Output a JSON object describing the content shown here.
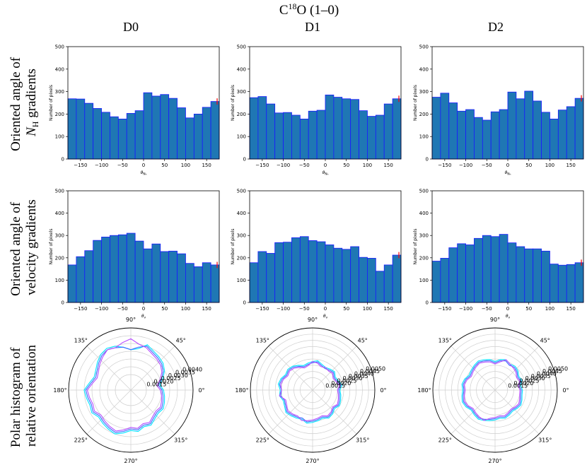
{
  "figure": {
    "title_main": "C",
    "title_sup": "18",
    "title_rest": "O (1–0)",
    "columns": [
      "D0",
      "D1",
      "D2"
    ],
    "row_labels": [
      [
        "Oriented angle of",
        "N",
        "H",
        " gradients"
      ],
      [
        "Oriented angle of",
        "velocity gradients"
      ],
      [
        "Polar histogram of",
        "relative orientation"
      ]
    ]
  },
  "colors": {
    "bar_fill": "#1f77b4",
    "bar_edge": "#1a1aff",
    "error": "#ff0000",
    "polar_series": [
      "#00e5ff",
      "#3d6bff",
      "#b84dff"
    ]
  },
  "chart_data": [
    {
      "type": "bar",
      "row": 0,
      "col": 0,
      "xlabel_sym": "θ",
      "xlabel_sub": "Nₕ",
      "ylabel": "Number of pixels",
      "ylim": [
        0,
        500
      ],
      "xlim": [
        -180,
        180
      ],
      "xticks": [
        -150,
        -100,
        -50,
        0,
        50,
        100,
        150
      ],
      "yticks": [
        0,
        100,
        200,
        300,
        400,
        500
      ],
      "bin_edges_start": -180,
      "bin_width": 20,
      "values": [
        268,
        267,
        248,
        225,
        208,
        188,
        178,
        203,
        215,
        295,
        280,
        287,
        270,
        228,
        183,
        200,
        230,
        256
      ],
      "error": {
        "x": 175,
        "value": 256,
        "size": 14
      }
    },
    {
      "type": "bar",
      "row": 0,
      "col": 1,
      "xlabel_sym": "θ",
      "xlabel_sub": "Nₕ",
      "ylabel": "Number of pixels",
      "ylim": [
        0,
        500
      ],
      "xlim": [
        -180,
        180
      ],
      "xticks": [
        -150,
        -100,
        -50,
        0,
        50,
        100,
        150
      ],
      "yticks": [
        0,
        100,
        200,
        300,
        400,
        500
      ],
      "bin_edges_start": -180,
      "bin_width": 20,
      "values": [
        273,
        278,
        245,
        205,
        207,
        195,
        178,
        213,
        217,
        285,
        275,
        268,
        265,
        215,
        190,
        195,
        245,
        268
      ],
      "error": {
        "x": 175,
        "value": 268,
        "size": 14
      }
    },
    {
      "type": "bar",
      "row": 0,
      "col": 2,
      "xlabel_sym": "θ",
      "xlabel_sub": "Nₕ",
      "ylabel": "Number of pixels",
      "ylim": [
        0,
        500
      ],
      "xlim": [
        -180,
        180
      ],
      "xticks": [
        -150,
        -100,
        -50,
        0,
        50,
        100,
        150
      ],
      "yticks": [
        0,
        100,
        200,
        300,
        400,
        500
      ],
      "bin_edges_start": -180,
      "bin_width": 20,
      "values": [
        275,
        293,
        250,
        213,
        220,
        185,
        173,
        210,
        220,
        298,
        268,
        302,
        258,
        208,
        178,
        218,
        233,
        270
      ],
      "error": {
        "x": 175,
        "value": 270,
        "size": 14
      }
    },
    {
      "type": "bar",
      "row": 1,
      "col": 0,
      "xlabel_sym": "θ",
      "xlabel_sub": "v",
      "ylabel": "Number of pixels",
      "ylim": [
        0,
        500
      ],
      "xlim": [
        -180,
        180
      ],
      "xticks": [
        -150,
        -100,
        -50,
        0,
        50,
        100,
        150
      ],
      "yticks": [
        0,
        100,
        200,
        300,
        400,
        500
      ],
      "bin_edges_start": -180,
      "bin_width": 20,
      "values": [
        168,
        205,
        232,
        278,
        293,
        300,
        303,
        310,
        275,
        240,
        262,
        228,
        230,
        218,
        175,
        160,
        178,
        168
      ],
      "error": {
        "x": 175,
        "value": 168,
        "size": 14
      }
    },
    {
      "type": "bar",
      "row": 1,
      "col": 1,
      "xlabel_sym": "θ",
      "xlabel_sub": "v",
      "ylabel": "Number of pixels",
      "ylim": [
        0,
        500
      ],
      "xlim": [
        -180,
        180
      ],
      "xticks": [
        -150,
        -100,
        -50,
        0,
        50,
        100,
        150
      ],
      "yticks": [
        0,
        100,
        200,
        300,
        400,
        500
      ],
      "bin_edges_start": -180,
      "bin_width": 20,
      "values": [
        178,
        228,
        220,
        268,
        270,
        290,
        295,
        277,
        272,
        258,
        243,
        238,
        250,
        202,
        198,
        140,
        168,
        212
      ],
      "error": {
        "x": 175,
        "value": 212,
        "size": 14
      }
    },
    {
      "type": "bar",
      "row": 1,
      "col": 2,
      "xlabel_sym": "θ",
      "xlabel_sub": "v",
      "ylabel": "Number of pixels",
      "ylim": [
        0,
        500
      ],
      "xlim": [
        -180,
        180
      ],
      "xticks": [
        -150,
        -100,
        -50,
        0,
        50,
        100,
        150
      ],
      "yticks": [
        0,
        100,
        200,
        300,
        400,
        500
      ],
      "bin_edges_start": -180,
      "bin_width": 20,
      "values": [
        185,
        198,
        245,
        263,
        258,
        287,
        300,
        295,
        305,
        267,
        250,
        240,
        240,
        230,
        172,
        167,
        170,
        178
      ],
      "error": {
        "x": 175,
        "value": 178,
        "size": 14
      }
    },
    {
      "type": "polar",
      "row": 2,
      "col": 0,
      "rmin": 0.0005,
      "rmax": 0.0045,
      "rticks": [
        "0.0015",
        "0.0020",
        "0.0025",
        "0.0030",
        "0.0035",
        "0.0040"
      ],
      "rtick_values": [
        0.0015,
        0.002,
        0.0025,
        0.003,
        0.0035,
        0.004
      ],
      "angle_labels": [
        "0°",
        "45°",
        "90°",
        "135°",
        "180°",
        "225°",
        "270°",
        "315°"
      ],
      "series": [
        {
          "values": [
            0.0026,
            0.0024,
            0.0027,
            0.003,
            0.0032,
            0.0033,
            0.0034,
            0.0036,
            0.0032,
            0.0031,
            0.0033,
            0.0035,
            0.0036,
            0.0035,
            0.0033,
            0.0031,
            0.003,
            0.0032,
            0.0035,
            0.0034,
            0.0033,
            0.0034,
            0.0032,
            0.0033,
            0.0034,
            0.0035,
            0.0033,
            0.0031,
            0.0032,
            0.003,
            0.0031,
            0.0029,
            0.0028,
            0.0029,
            0.0028,
            0.0027
          ]
        },
        {
          "values": [
            0.0025,
            0.0023,
            0.0026,
            0.0029,
            0.0031,
            0.0032,
            0.0033,
            0.0035,
            0.0033,
            0.0031,
            0.0033,
            0.0034,
            0.0035,
            0.0034,
            0.0032,
            0.003,
            0.0029,
            0.0031,
            0.0034,
            0.0033,
            0.0032,
            0.0033,
            0.0031,
            0.0032,
            0.0033,
            0.0034,
            0.0032,
            0.003,
            0.0031,
            0.0029,
            0.003,
            0.0028,
            0.0027,
            0.0028,
            0.0027,
            0.0026
          ]
        },
        {
          "values": [
            0.0024,
            0.0022,
            0.0025,
            0.0028,
            0.003,
            0.0031,
            0.0032,
            0.0034,
            0.0035,
            0.0038,
            0.0036,
            0.0034,
            0.0035,
            0.0033,
            0.0031,
            0.0029,
            0.0028,
            0.003,
            0.0033,
            0.0032,
            0.0031,
            0.0032,
            0.003,
            0.0031,
            0.0032,
            0.0033,
            0.0031,
            0.0029,
            0.003,
            0.0028,
            0.0029,
            0.0027,
            0.0026,
            0.0027,
            0.0026,
            0.0025
          ]
        }
      ]
    },
    {
      "type": "polar",
      "row": 2,
      "col": 1,
      "rmin": 0.0005,
      "rmax": 0.0055,
      "rticks": [
        "0.0015",
        "0.0020",
        "0.0025",
        "0.0030",
        "0.0035",
        "0.0040",
        "0.0045",
        "0.0050"
      ],
      "rtick_values": [
        0.0015,
        0.002,
        0.0025,
        0.003,
        0.0035,
        0.004,
        0.0045,
        0.005
      ],
      "angle_labels": [
        "0°",
        "45°",
        "90°",
        "135°",
        "180°",
        "225°",
        "270°",
        "315°"
      ],
      "series": [
        {
          "values": [
            0.0027,
            0.0029,
            0.0027,
            0.0026,
            0.0028,
            0.0027,
            0.0026,
            0.0027,
            0.0029,
            0.0028,
            0.0027,
            0.0026,
            0.0028,
            0.003,
            0.0031,
            0.003,
            0.0032,
            0.0033,
            0.0031,
            0.0032,
            0.003,
            0.0031,
            0.0033,
            0.0032,
            0.0031,
            0.003,
            0.0032,
            0.0031,
            0.003,
            0.0029,
            0.0031,
            0.003,
            0.0028,
            0.003,
            0.0029,
            0.0028
          ]
        },
        {
          "values": [
            0.0026,
            0.0028,
            0.0026,
            0.0025,
            0.0027,
            0.0026,
            0.0025,
            0.0026,
            0.0028,
            0.0027,
            0.0026,
            0.0025,
            0.0027,
            0.0029,
            0.003,
            0.0029,
            0.0031,
            0.0032,
            0.003,
            0.0031,
            0.0029,
            0.003,
            0.0032,
            0.0031,
            0.003,
            0.0029,
            0.0031,
            0.003,
            0.0029,
            0.0028,
            0.003,
            0.0029,
            0.0027,
            0.0029,
            0.0028,
            0.0027
          ]
        },
        {
          "values": [
            0.0025,
            0.0027,
            0.0025,
            0.0024,
            0.0026,
            0.0025,
            0.0026,
            0.0025,
            0.0027,
            0.0028,
            0.0025,
            0.0024,
            0.0026,
            0.0028,
            0.0029,
            0.0028,
            0.003,
            0.0031,
            0.003,
            0.0032,
            0.0028,
            0.0029,
            0.0031,
            0.003,
            0.0029,
            0.0031,
            0.003,
            0.0029,
            0.0028,
            0.0027,
            0.0029,
            0.0028,
            0.0026,
            0.0028,
            0.0027,
            0.0026
          ]
        }
      ]
    },
    {
      "type": "polar",
      "row": 2,
      "col": 2,
      "rmin": 0.0005,
      "rmax": 0.0055,
      "rticks": [
        "0.0015",
        "0.0020",
        "0.0025",
        "0.0030",
        "0.0035",
        "0.0040",
        "0.0045",
        "0.0050"
      ],
      "rtick_values": [
        0.0015,
        0.002,
        0.0025,
        0.003,
        0.0035,
        0.004,
        0.0045,
        0.005
      ],
      "angle_labels": [
        "0°",
        "45°",
        "90°",
        "135°",
        "180°",
        "225°",
        "270°",
        "315°"
      ],
      "series": [
        {
          "values": [
            0.0027,
            0.0026,
            0.0028,
            0.0027,
            0.0029,
            0.003,
            0.0029,
            0.0031,
            0.003,
            0.0028,
            0.003,
            0.0031,
            0.0032,
            0.0031,
            0.003,
            0.0029,
            0.0031,
            0.0032,
            0.0031,
            0.0032,
            0.0033,
            0.0032,
            0.003,
            0.0031,
            0.0032,
            0.0031,
            0.003,
            0.0029,
            0.0028,
            0.0029,
            0.0028,
            0.0027,
            0.0028,
            0.0029,
            0.0028,
            0.0027
          ]
        },
        {
          "values": [
            0.0026,
            0.0025,
            0.0027,
            0.0026,
            0.0028,
            0.0029,
            0.0028,
            0.003,
            0.0029,
            0.0027,
            0.0029,
            0.003,
            0.0031,
            0.003,
            0.0029,
            0.0028,
            0.003,
            0.0031,
            0.003,
            0.0031,
            0.0032,
            0.0031,
            0.0029,
            0.003,
            0.0031,
            0.003,
            0.0029,
            0.0028,
            0.0027,
            0.0028,
            0.0027,
            0.0026,
            0.0027,
            0.0028,
            0.0027,
            0.0026
          ]
        },
        {
          "values": [
            0.0025,
            0.0024,
            0.0026,
            0.0025,
            0.0027,
            0.0028,
            0.0029,
            0.0031,
            0.0028,
            0.0026,
            0.0028,
            0.0029,
            0.003,
            0.0029,
            0.0028,
            0.0027,
            0.0029,
            0.003,
            0.0029,
            0.003,
            0.0031,
            0.003,
            0.0028,
            0.0029,
            0.003,
            0.0031,
            0.0028,
            0.0027,
            0.0026,
            0.0027,
            0.0026,
            0.0025,
            0.0026,
            0.0027,
            0.0026,
            0.0025
          ]
        }
      ]
    }
  ]
}
